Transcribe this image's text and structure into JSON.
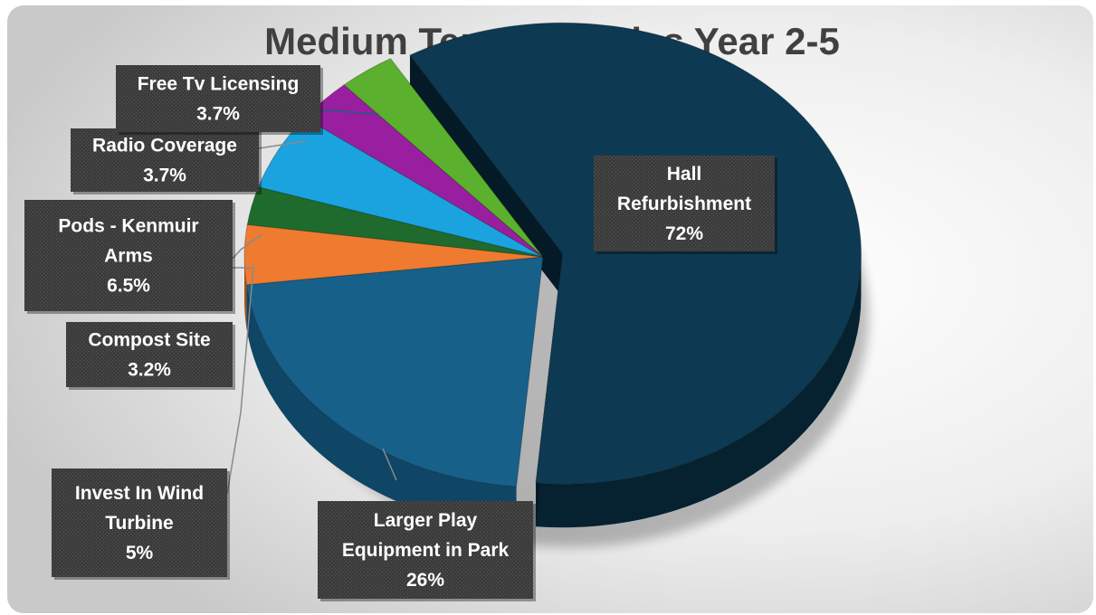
{
  "chart_data": {
    "type": "pie",
    "title": "Medium Term Priorities Year 2-5",
    "style": "3d-exploded",
    "slices": [
      {
        "name": "Hall Refurbishment",
        "value": 72,
        "label": "72%",
        "color": "#0d3a52",
        "side": "#062231"
      },
      {
        "name": "Larger Play Equipment in Park",
        "value": 26,
        "label": "26%",
        "color": "#17608a",
        "side": "#0f4565"
      },
      {
        "name": "Invest In Wind Turbine",
        "value": 5,
        "label": "5%",
        "color": "#ee7b30",
        "side": "#a65019"
      },
      {
        "name": "Compost Site",
        "value": 3.2,
        "label": "3.2%",
        "color": "#1e6b2d",
        "side": "#12441c"
      },
      {
        "name": "Pods - Kenmuir Arms",
        "value": 6.5,
        "label": "6.5%",
        "color": "#1aa3df",
        "side": "#0f6f99"
      },
      {
        "name": "Radio Coverage",
        "value": 3.7,
        "label": "3.7%",
        "color": "#9a1fa0",
        "side": "#641268"
      },
      {
        "name": "Free Tv Licensing",
        "value": 3.7,
        "label": "3.7%",
        "color": "#5bb02e",
        "side": "#3a731c"
      }
    ],
    "labels": [
      {
        "lines": [
          "Hall",
          "Refurbishment"
        ],
        "pct": "72%"
      },
      {
        "lines": [
          "Larger Play",
          "Equipment in Park"
        ],
        "pct": "26%"
      },
      {
        "lines": [
          "Invest In Wind",
          "Turbine"
        ],
        "pct": "5%"
      },
      {
        "lines": [
          "Compost Site"
        ],
        "pct": "3.2%"
      },
      {
        "lines": [
          "Pods - Kenmuir",
          "Arms"
        ],
        "pct": "6.5%"
      },
      {
        "lines": [
          "Radio Coverage"
        ],
        "pct": "3.7%"
      },
      {
        "lines": [
          "Free Tv Licensing"
        ],
        "pct": "3.7%"
      }
    ]
  }
}
